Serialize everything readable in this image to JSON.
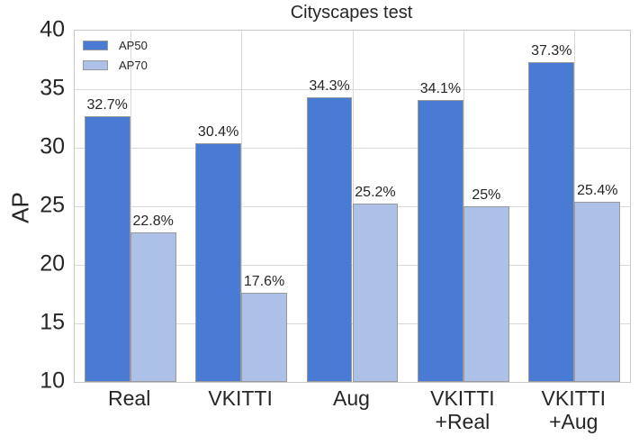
{
  "title": "Cityscapes test",
  "chart_data": {
    "type": "bar",
    "title": "Cityscapes test",
    "xlabel": "",
    "ylabel": "AP",
    "ylim": [
      10,
      40
    ],
    "yticks": [
      40,
      35,
      30,
      25,
      20,
      15,
      10
    ],
    "grid": true,
    "legend_position": "upper-left",
    "categories": [
      "Real",
      "VKITTI",
      "Aug",
      "VKITTI\n+Real",
      "VKITTI\n+Aug"
    ],
    "series": [
      {
        "name": "AP50",
        "values": [
          32.7,
          30.4,
          34.3,
          34.1,
          37.3
        ],
        "labels": [
          "32.7%",
          "30.4%",
          "34.3%",
          "34.1%",
          "37.3%"
        ],
        "color": "#4a7bd4",
        "edge_color": "#9a9a9a"
      },
      {
        "name": "AP70",
        "values": [
          22.8,
          17.6,
          25.2,
          25.0,
          25.4
        ],
        "labels": [
          "22.8%",
          "17.6%",
          "25.2%",
          "25%",
          "25.4%"
        ],
        "color": "#adc1e8",
        "edge_color": "#9a9a9a"
      }
    ]
  },
  "colors": {
    "background": "#ffffff",
    "grid": "#d9d9d9",
    "axis_border": "#c9c9c9",
    "text": "#262626",
    "ap50_fill": "#4a7bd4",
    "ap70_fill": "#adc1e8",
    "bar_edge": "#9a9a9a"
  }
}
